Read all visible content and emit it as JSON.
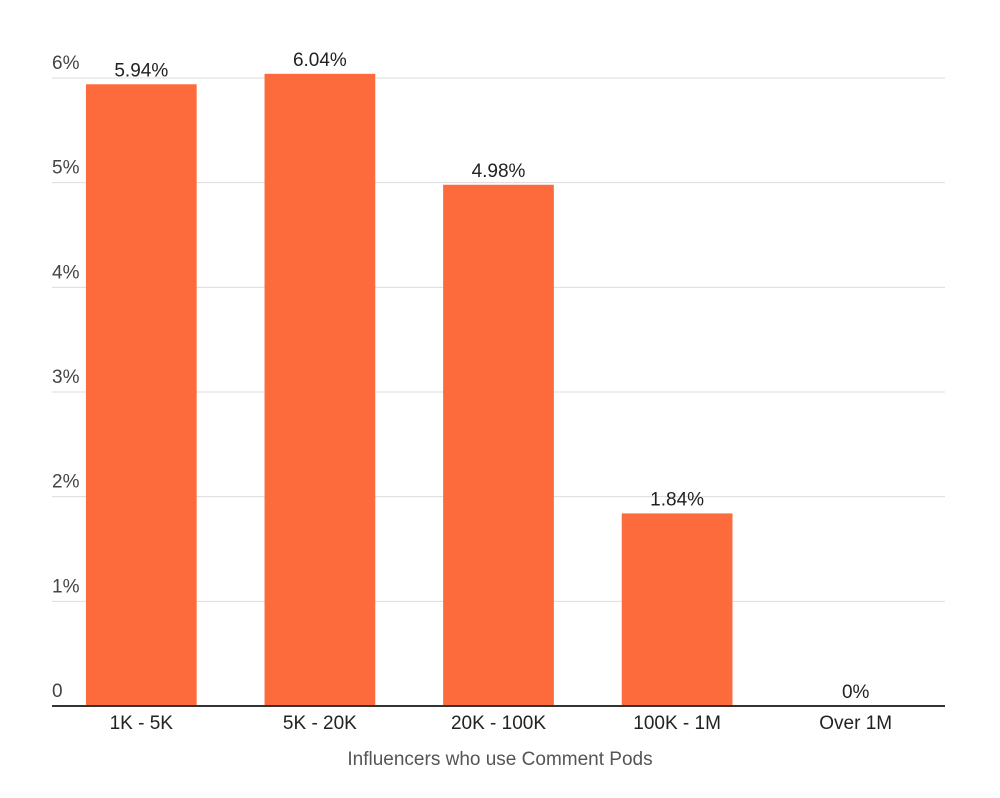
{
  "chart_data": {
    "type": "bar",
    "x_label": "Influencers who use Comment Pods",
    "categories": [
      "1K - 5K",
      "5K - 20K",
      "20K - 100K",
      "100K - 1M",
      "Over 1M"
    ],
    "values": [
      5.94,
      6.04,
      4.98,
      1.84,
      0
    ],
    "value_labels": [
      "5.94%",
      "6.04%",
      "4.98%",
      "1.84%",
      "0%"
    ],
    "color": "#fd6a3b",
    "ylim": [
      0,
      6
    ],
    "yticks": [
      0,
      {
        "value": 1,
        "label": "1%"
      },
      {
        "value": 2,
        "label": "2%"
      },
      {
        "value": 3,
        "label": "3%"
      },
      {
        "value": 4,
        "label": "4%"
      },
      {
        "value": 5,
        "label": "5%"
      },
      {
        "value": 6,
        "label": "6%"
      }
    ],
    "grid": true
  }
}
